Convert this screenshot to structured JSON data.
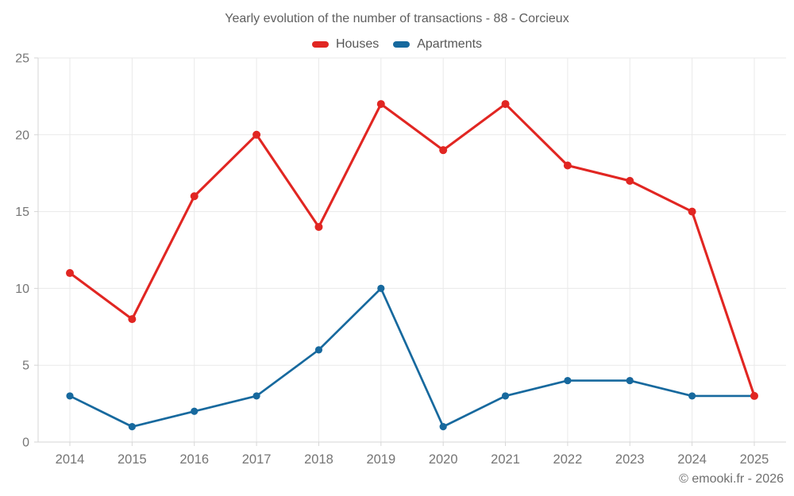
{
  "header": {
    "title": "Yearly evolution of the number of transactions - 88 - Corcieux"
  },
  "footer": {
    "credit": "© emooki.fr - 2026"
  },
  "colors": {
    "houses": "#e12622",
    "apartments": "#17699e",
    "grid": "#e9e9e9",
    "axis": "#d6d6d6",
    "tick_label": "#757575",
    "title_text": "#5f5f5f"
  },
  "chart_data": {
    "type": "line",
    "title": "Yearly evolution of the number of transactions - 88 - Corcieux",
    "categories": [
      "2014",
      "2015",
      "2016",
      "2017",
      "2018",
      "2019",
      "2020",
      "2021",
      "2022",
      "2023",
      "2024",
      "2025"
    ],
    "series": [
      {
        "name": "Houses",
        "color": "#e12622",
        "values": [
          11,
          8,
          16,
          20,
          14,
          22,
          19,
          22,
          18,
          17,
          15,
          3
        ]
      },
      {
        "name": "Apartments",
        "color": "#17699e",
        "values": [
          3,
          1,
          2,
          3,
          6,
          10,
          1,
          3,
          4,
          4,
          3,
          3
        ]
      }
    ],
    "xlabel": "",
    "ylabel": "",
    "ylim": [
      0,
      25
    ],
    "yticks": [
      0,
      5,
      10,
      15,
      20,
      25
    ],
    "grid": true,
    "legend_position": "top"
  }
}
